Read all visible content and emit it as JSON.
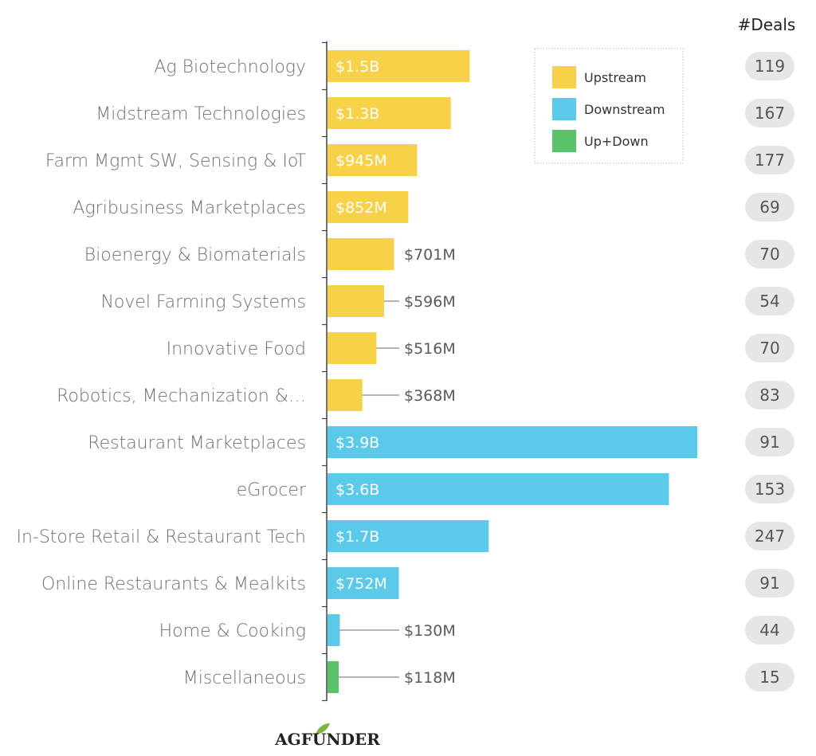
{
  "chart_data": {
    "type": "bar",
    "orientation": "horizontal",
    "title": "",
    "xlabel": "",
    "ylabel": "",
    "xlim": [
      0,
      4.0
    ],
    "value_unit": "$B",
    "grid": false,
    "legend_placement": "top-right",
    "deals_header": "#Deals",
    "legend": [
      {
        "label": "Upstream",
        "color": "#F7D147"
      },
      {
        "label": "Downstream",
        "color": "#5BC9E9"
      },
      {
        "label": "Up+Down",
        "color": "#5AC26B"
      }
    ],
    "bars": [
      {
        "category": "Ag Biotechnology",
        "value": 1.5,
        "value_label": "$1.5B",
        "group": "Upstream",
        "deals": "119"
      },
      {
        "category": "Midstream Technologies",
        "value": 1.3,
        "value_label": "$1.3B",
        "group": "Upstream",
        "deals": "167"
      },
      {
        "category": "Farm Mgmt SW, Sensing & IoT",
        "value": 0.945,
        "value_label": "$945M",
        "group": "Upstream",
        "deals": "177"
      },
      {
        "category": "Agribusiness Marketplaces",
        "value": 0.852,
        "value_label": "$852M",
        "group": "Upstream",
        "deals": "69"
      },
      {
        "category": "Bioenergy & Biomaterials",
        "value": 0.701,
        "value_label": "$701M",
        "group": "Upstream",
        "deals": "70"
      },
      {
        "category": "Novel Farming Systems",
        "value": 0.596,
        "value_label": "$596M",
        "group": "Upstream",
        "deals": "54"
      },
      {
        "category": "Innovative Food",
        "value": 0.516,
        "value_label": "$516M",
        "group": "Upstream",
        "deals": "70"
      },
      {
        "category": "Robotics, Mechanization &…",
        "value": 0.368,
        "value_label": "$368M",
        "group": "Upstream",
        "deals": "83"
      },
      {
        "category": "Restaurant Marketplaces",
        "value": 3.9,
        "value_label": "$3.9B",
        "group": "Downstream",
        "deals": "91"
      },
      {
        "category": "eGrocer",
        "value": 3.6,
        "value_label": "$3.6B",
        "group": "Downstream",
        "deals": "153"
      },
      {
        "category": "In-Store Retail & Restaurant Tech",
        "value": 1.7,
        "value_label": "$1.7B",
        "group": "Downstream",
        "deals": "247"
      },
      {
        "category": "Online Restaurants & Mealkits",
        "value": 0.752,
        "value_label": "$752M",
        "group": "Downstream",
        "deals": "91"
      },
      {
        "category": "Home & Cooking",
        "value": 0.13,
        "value_label": "$130M",
        "group": "Downstream",
        "deals": "44"
      },
      {
        "category": "Miscellaneous",
        "value": 0.118,
        "value_label": "$118M",
        "group": "Up+Down",
        "deals": "15"
      }
    ]
  },
  "logo": {
    "text": "AGFUNDER"
  },
  "colors": {
    "deal_pill": "#E6E6E6",
    "axis": "#444444",
    "leader": "#888888"
  }
}
